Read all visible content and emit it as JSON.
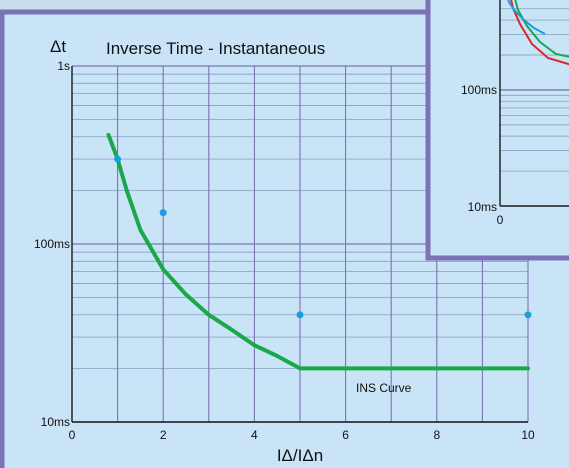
{
  "chart_data": {
    "type": "line",
    "title": "Inverse Time - Instantaneous",
    "xlabel": "IΔ/IΔn",
    "ylabel": "Δt",
    "xlim": [
      0,
      10
    ],
    "ylim": [
      10,
      1000
    ],
    "yscale": "log",
    "x_ticks": [
      0,
      2,
      4,
      6,
      8,
      10
    ],
    "x_tick_labels": [
      "0",
      "2",
      "4",
      "6",
      "8",
      "10"
    ],
    "y_ticks": [
      10,
      100,
      1000
    ],
    "y_tick_labels": [
      "10ms",
      "100ms",
      "1s"
    ],
    "grid": true,
    "series": [
      {
        "name": "INS Curve",
        "color": "#1aa84a",
        "x": [
          0.8,
          1.0,
          1.2,
          1.5,
          2.0,
          2.5,
          3.0,
          3.5,
          4.0,
          4.5,
          5.0,
          6.0,
          7.0,
          8.0,
          9.0,
          10.0
        ],
        "y": [
          410,
          300,
          200,
          120,
          72,
          52,
          40,
          33,
          27,
          23.5,
          20,
          20,
          20,
          20,
          20,
          20
        ]
      }
    ],
    "markers": {
      "color": "#1a9ee0",
      "x": [
        1,
        2,
        5,
        10
      ],
      "y": [
        300,
        150,
        40,
        40
      ]
    }
  },
  "inset": {
    "y_tick_labels": [
      "100ms",
      "10ms"
    ],
    "x_tick_labels": [
      "0"
    ],
    "curve_colors": [
      "#d82a2a",
      "#1aa84a",
      "#1a9ee0"
    ]
  }
}
